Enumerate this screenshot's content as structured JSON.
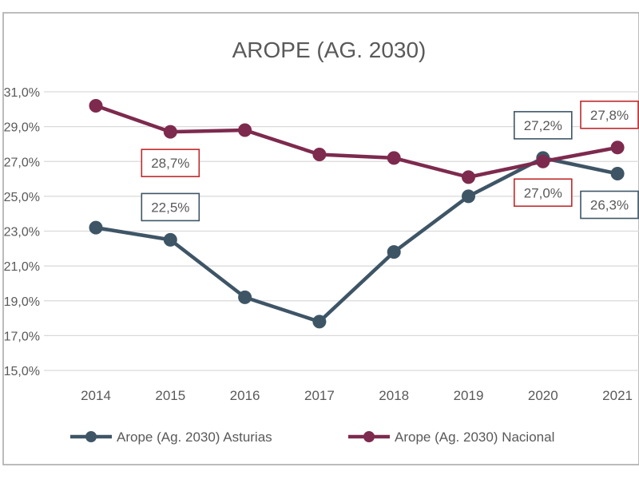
{
  "chart_data": {
    "type": "line",
    "title": "AROPE (AG. 2030)",
    "xlabel": "",
    "ylabel": "",
    "categories": [
      "2014",
      "2015",
      "2016",
      "2017",
      "2018",
      "2019",
      "2020",
      "2021"
    ],
    "ylim": [
      15.0,
      31.0
    ],
    "yticks": [
      15.0,
      17.0,
      19.0,
      21.0,
      23.0,
      25.0,
      27.0,
      29.0,
      31.0
    ],
    "ytick_labels": [
      "15,0%",
      "17,0%",
      "19,0%",
      "21,0%",
      "23,0%",
      "25,0%",
      "27,0%",
      "29,0%",
      "31,0%"
    ],
    "grid": true,
    "legend_position": "bottom",
    "series": [
      {
        "name": "Arope (Ag. 2030) Asturias",
        "color": "#3e5566",
        "values": [
          23.2,
          22.5,
          19.2,
          17.8,
          21.8,
          25.0,
          27.2,
          26.3
        ],
        "labels": [
          {
            "index": 1,
            "text": "22,5%",
            "placement": "above"
          },
          {
            "index": 6,
            "text": "27,2%",
            "placement": "above"
          },
          {
            "index": 7,
            "text": "26,3%",
            "placement": "below"
          }
        ]
      },
      {
        "name": "Arope (Ag. 2030) Nacional",
        "color": "#7d2a4e",
        "label_border": "#c0292b",
        "values": [
          30.2,
          28.7,
          28.8,
          27.4,
          27.2,
          26.1,
          27.0,
          27.8
        ],
        "labels": [
          {
            "index": 1,
            "text": "28,7%",
            "placement": "below"
          },
          {
            "index": 6,
            "text": "27,0%",
            "placement": "below"
          },
          {
            "index": 7,
            "text": "27,8%",
            "placement": "above"
          }
        ]
      }
    ]
  }
}
